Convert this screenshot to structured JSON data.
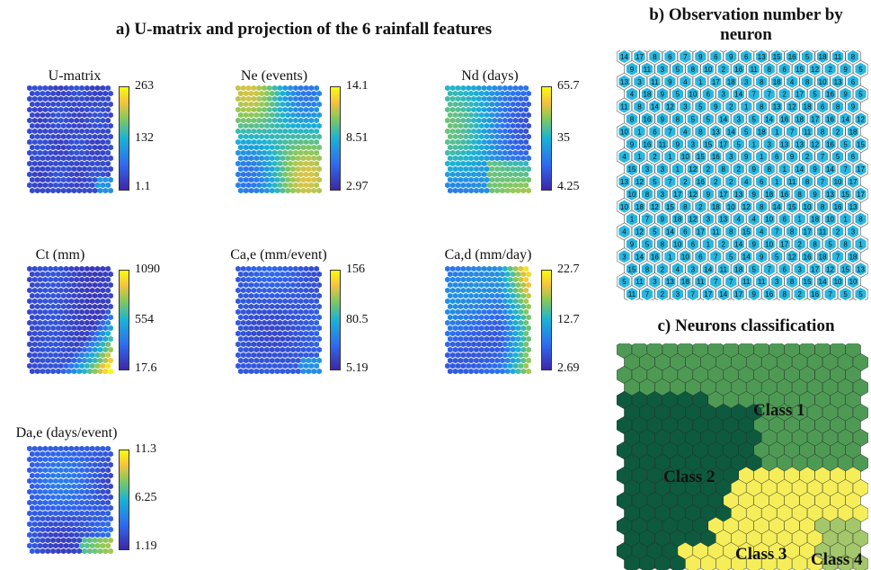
{
  "titles": {
    "a": "a) U-matrix and projection of the 6 rainfall features",
    "b_line1": "b) Observation number by",
    "b_line2": "neuron",
    "c": "c) Neurons classification"
  },
  "panels": [
    {
      "title": "U-matrix",
      "max": "263",
      "mid": "132",
      "min": "1.1"
    },
    {
      "title": "Ne (events)",
      "max": "14.1",
      "mid": "8.51",
      "min": "2.97"
    },
    {
      "title": "Nd (days)",
      "max": "65.7",
      "mid": "35",
      "min": "4.25"
    },
    {
      "title": "Ct (mm)",
      "max": "1090",
      "mid": "554",
      "min": "17.6"
    },
    {
      "title": "Ca,e (mm/event)",
      "max": "156",
      "mid": "80.5",
      "min": "5.19"
    },
    {
      "title": "Ca,d (mm/day)",
      "max": "22.7",
      "mid": "12.7",
      "min": "2.69"
    },
    {
      "title": "Da,e (days/event)",
      "max": "11.3",
      "mid": "6.25",
      "min": "1.19"
    }
  ],
  "observation_grid_first_row": [
    "14",
    "17",
    "8",
    "6",
    "7",
    "9",
    "6",
    "9",
    "6",
    "13",
    "15",
    "16",
    "5",
    "18",
    "11",
    "8"
  ],
  "classes": {
    "labels": [
      "Class 1",
      "Class 2",
      "Class 3",
      "Class 4"
    ],
    "colors": [
      "#4e9a55",
      "#0d5a3f",
      "#f5ee5a",
      "#a3c76a"
    ],
    "hex_stroke": "#2b2b2b"
  }
}
